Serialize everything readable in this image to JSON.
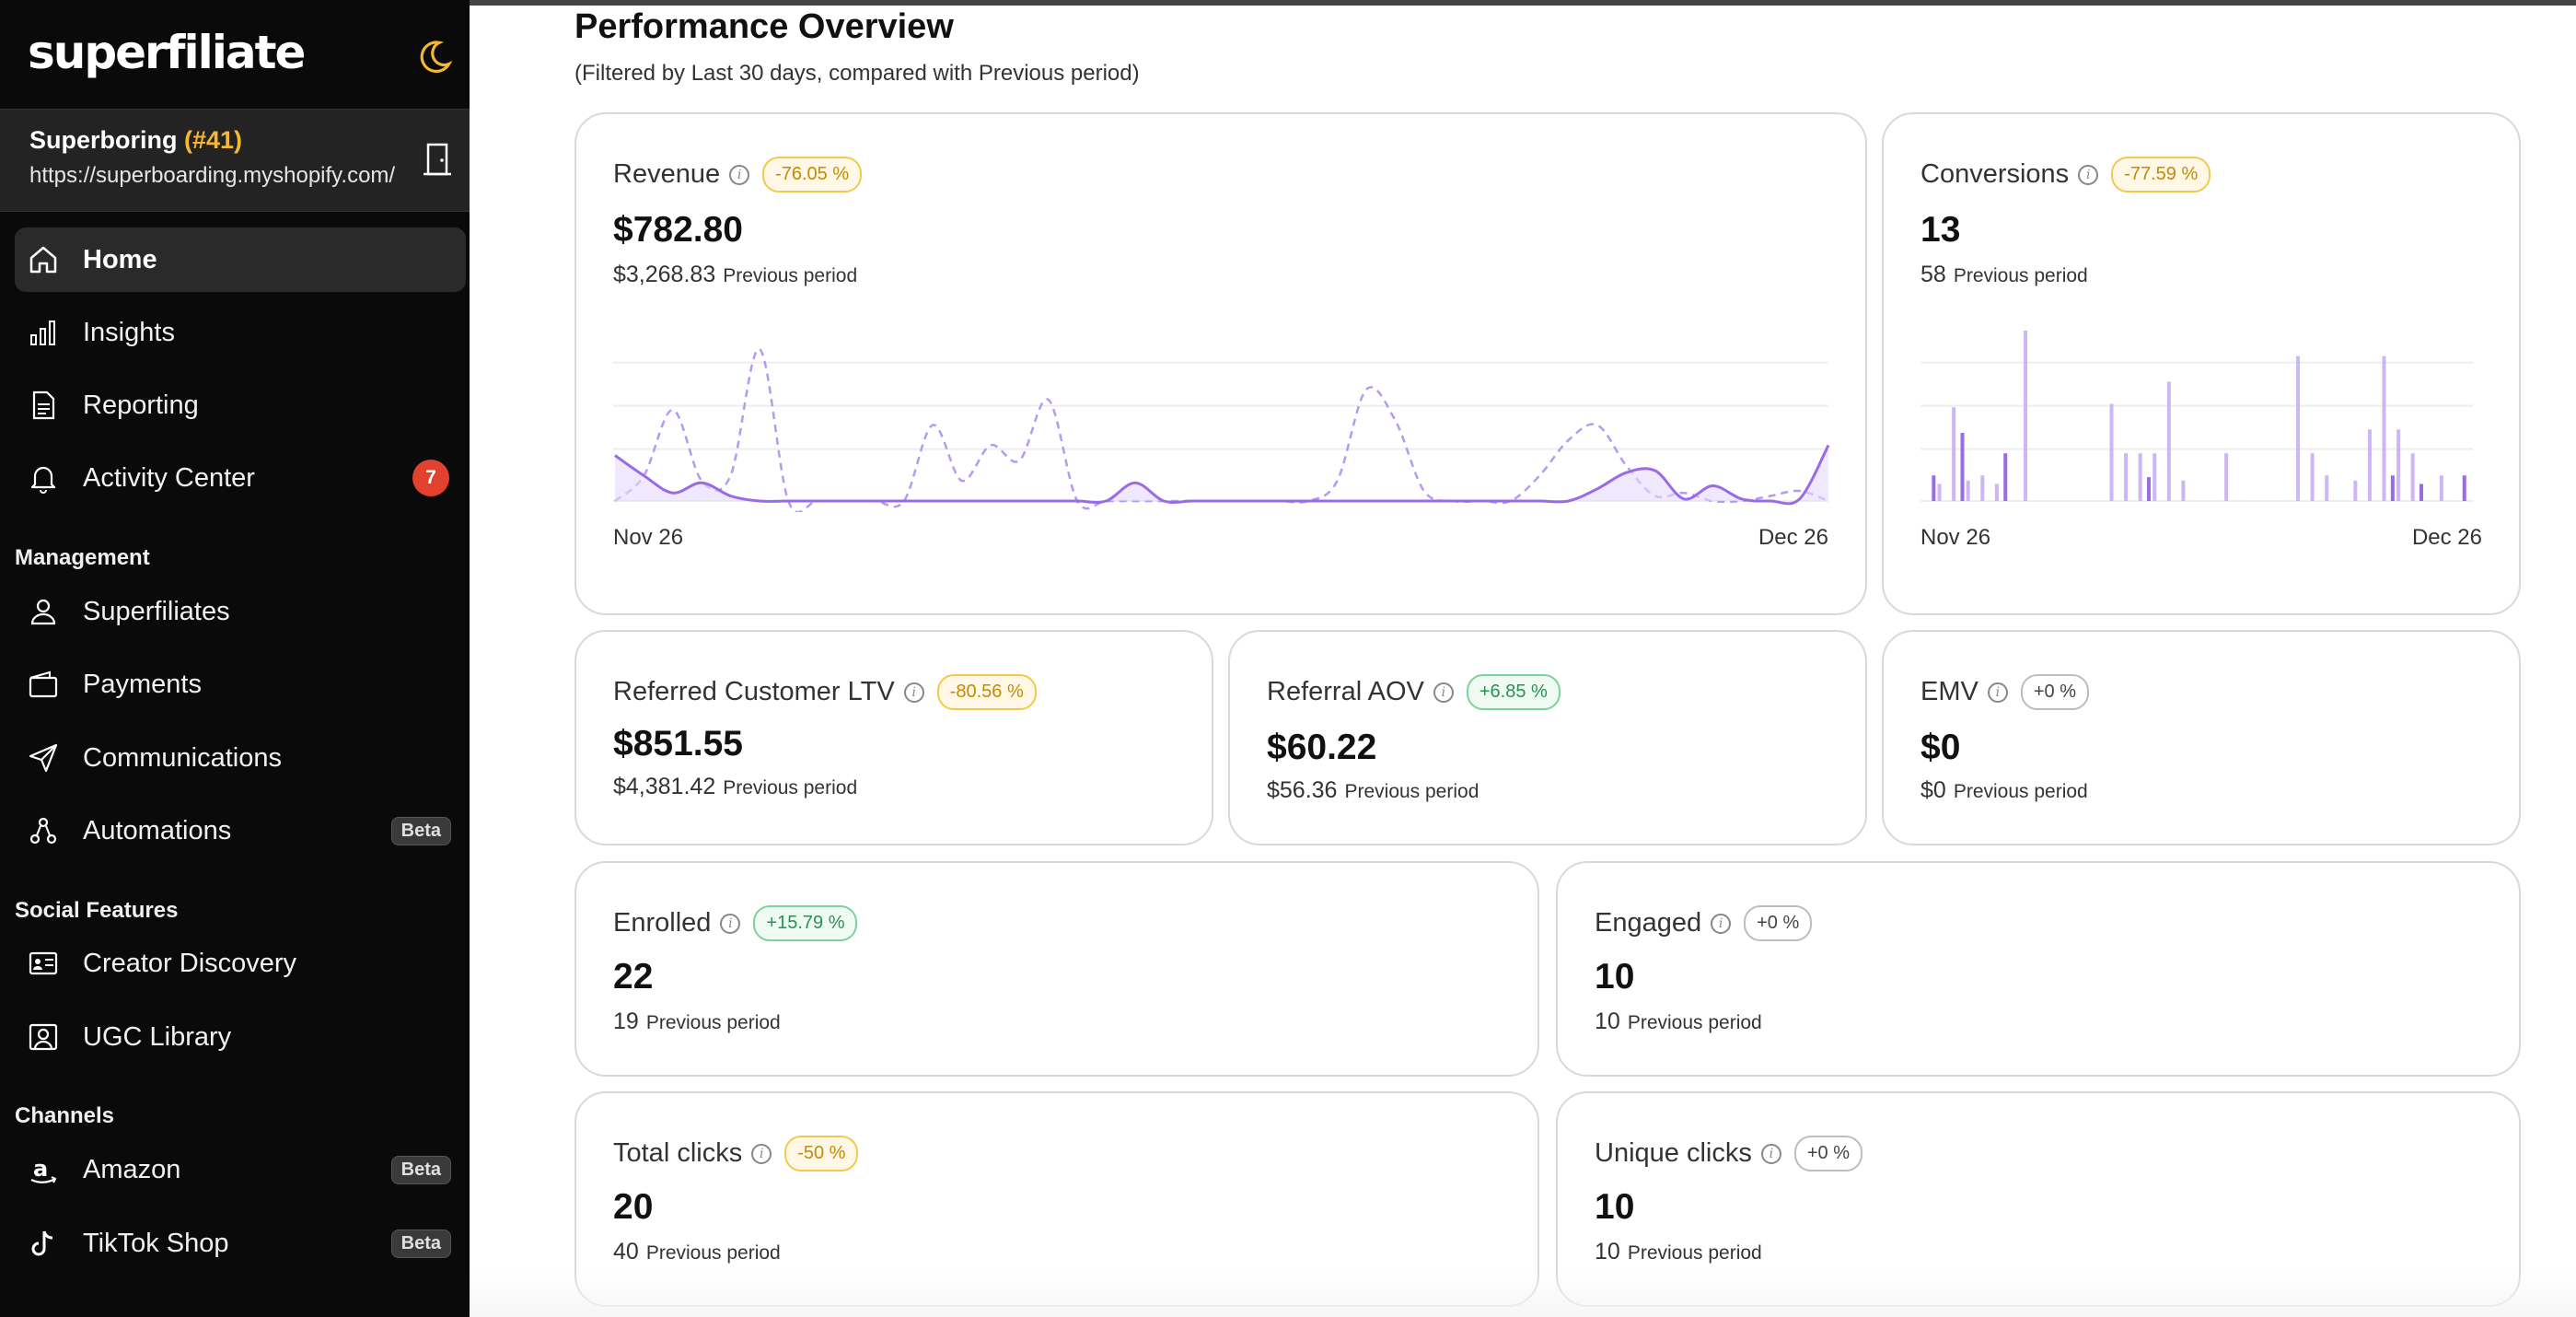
{
  "sidebar": {
    "logo": "superfiliate",
    "store": {
      "name": "Superboring",
      "number": "(#41)",
      "url": "https://superboarding.myshopify.com/"
    },
    "nav": [
      {
        "label": "Home",
        "icon": "home-icon"
      },
      {
        "label": "Insights",
        "icon": "bar-chart-icon"
      },
      {
        "label": "Reporting",
        "icon": "document-icon"
      },
      {
        "label": "Activity Center",
        "icon": "bell-icon",
        "badge": "7"
      }
    ],
    "management_title": "Management",
    "management": [
      {
        "label": "Superfiliates",
        "icon": "user-icon"
      },
      {
        "label": "Payments",
        "icon": "wallet-icon"
      },
      {
        "label": "Communications",
        "icon": "send-icon"
      },
      {
        "label": "Automations",
        "icon": "automation-icon",
        "badge": "Beta"
      }
    ],
    "social_title": "Social Features",
    "social": [
      {
        "label": "Creator Discovery",
        "icon": "id-card-icon"
      },
      {
        "label": "UGC Library",
        "icon": "image-user-icon"
      }
    ],
    "channels_title": "Channels",
    "channels": [
      {
        "label": "Amazon",
        "icon": "amazon-icon",
        "badge": "Beta"
      },
      {
        "label": "TikTok Shop",
        "icon": "tiktok-icon",
        "badge": "Beta"
      }
    ]
  },
  "main": {
    "title": "Performance Overview",
    "subtitle": "(Filtered by Last 30 days, compared with Previous period)",
    "prev_label": "Previous period",
    "cards": {
      "revenue": {
        "title": "Revenue",
        "change": "-76.05 %",
        "value": "$782.80",
        "prev": "$3,268.83"
      },
      "conversions": {
        "title": "Conversions",
        "change": "-77.59 %",
        "value": "13",
        "prev": "58"
      },
      "ltv": {
        "title": "Referred Customer LTV",
        "change": "-80.56 %",
        "value": "$851.55",
        "prev": "$4,381.42"
      },
      "aov": {
        "title": "Referral AOV",
        "change": "+6.85 %",
        "value": "$60.22",
        "prev": "$56.36"
      },
      "emv": {
        "title": "EMV",
        "change": "+0 %",
        "value": "$0",
        "prev": "$0"
      },
      "enrolled": {
        "title": "Enrolled",
        "change": "+15.79 %",
        "value": "22",
        "prev": "19"
      },
      "engaged": {
        "title": "Engaged",
        "change": "+0 %",
        "value": "10",
        "prev": "10"
      },
      "total_clicks": {
        "title": "Total clicks",
        "change": "-50 %",
        "value": "20",
        "prev": "40"
      },
      "unique_clicks": {
        "title": "Unique clicks",
        "change": "+0 %",
        "value": "10",
        "prev": "10"
      }
    }
  },
  "chart_data": [
    {
      "type": "area",
      "x_start": "Nov 26",
      "x_end": "Dec 26",
      "series": [
        {
          "values": [
            0.45,
            0.25,
            0.08,
            0.18,
            0.05,
            0,
            0,
            0,
            0,
            0,
            0,
            0,
            0,
            0,
            0,
            0,
            0,
            0,
            0.18,
            0,
            0,
            0,
            0,
            0,
            0,
            0,
            0,
            0,
            0,
            0,
            0,
            0,
            0,
            0,
            0.12,
            0.28,
            0.3,
            0.02,
            0.15,
            0.02,
            0,
            0.02,
            0.55
          ]
        },
        {
          "values": [
            0,
            0.25,
            0.9,
            0.2,
            0.25,
            1.5,
            0,
            0,
            0,
            0,
            0,
            0.75,
            0.2,
            0.55,
            0.4,
            1.0,
            0,
            0,
            0,
            0,
            0,
            0,
            0,
            0,
            0,
            0.2,
            1.1,
            0.8,
            0.1,
            0,
            0,
            0,
            0.25,
            0.6,
            0.75,
            0.35,
            0.05,
            0.08,
            0,
            0,
            0.05,
            0.1,
            0
          ]
        }
      ],
      "colors": {
        "current": "#9a6be6",
        "previous": "#b79af0",
        "fill": "#e6dbfb"
      }
    },
    {
      "type": "bar",
      "x_start": "Nov 26",
      "x_end": "Dec 26",
      "series": [
        {
          "values": [
            0.15,
            0,
            0.4,
            0,
            0,
            0.28,
            0,
            0,
            0,
            0,
            0,
            0,
            0,
            0,
            0,
            0.14,
            0,
            0,
            0,
            0,
            0,
            0,
            0,
            0,
            0,
            0,
            0,
            0,
            0,
            0,
            0,
            0,
            0.15,
            0,
            0.1,
            0,
            0,
            0.15
          ]
        },
        {
          "values": [
            0.1,
            0.55,
            0.12,
            0.15,
            0.1,
            0,
            1.0,
            0,
            0,
            0,
            0,
            0,
            0.57,
            0.28,
            0.28,
            0.28,
            0.7,
            0.12,
            0,
            0,
            0.28,
            0,
            0,
            0,
            0,
            0.85,
            0.28,
            0.15,
            0,
            0.12,
            0.42,
            0.85,
            0.42,
            0.28,
            0,
            0.15,
            0,
            0
          ]
        }
      ],
      "colors": {
        "current": "#9a6be6",
        "previous": "#cdb6f6"
      }
    }
  ]
}
